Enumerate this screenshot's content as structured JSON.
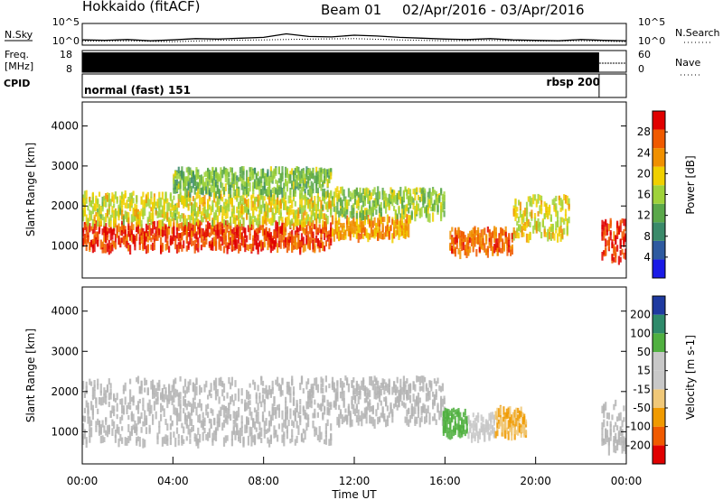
{
  "header": {
    "station": "Hokkaido (fitACF)",
    "beam": "Beam 01",
    "date_range": "02/Apr/2016 - 03/Apr/2016"
  },
  "colors": {
    "power": [
      "#1a1ae6",
      "#2e5aa0",
      "#3a8a6a",
      "#5aa84a",
      "#9fd23a",
      "#f0d000",
      "#f09000",
      "#f05a00",
      "#e00000"
    ],
    "velocity": [
      "#e00000",
      "#f05a00",
      "#f09a00",
      "#f0c878",
      "#c8c8c8",
      "#c8c8c8",
      "#50b040",
      "#2e8a6a",
      "#1e3aa0"
    ],
    "ground_scatter": "#b4b4b4"
  },
  "chart_data": [
    {
      "type": "line",
      "name": "noise-panel",
      "left_label": "N.Sky",
      "right_label": "N.Search",
      "left_ticks": [
        "10^5",
        "10^0"
      ],
      "right_ticks": [
        "10^5",
        "10^0"
      ],
      "series": [
        {
          "name": "N.Sky",
          "style": "solid",
          "x": [
            0,
            1,
            2,
            3,
            4,
            5,
            6,
            7,
            8,
            9,
            10,
            11,
            12,
            13,
            14,
            15,
            16,
            17,
            18,
            19,
            20,
            21,
            22,
            23,
            24
          ],
          "y": [
            1.2,
            1.1,
            1.3,
            1.0,
            1.2,
            1.5,
            1.4,
            1.6,
            1.8,
            2.6,
            2.0,
            1.9,
            2.3,
            2.1,
            1.8,
            1.6,
            1.4,
            1.3,
            1.5,
            1.2,
            1.1,
            1.0,
            1.3,
            1.1,
            1.0
          ]
        },
        {
          "name": "N.Search",
          "style": "dotted",
          "x": [
            0,
            2,
            4,
            6,
            8,
            10,
            12,
            14,
            16,
            18,
            20,
            22,
            24
          ],
          "y": [
            0.9,
            1.0,
            0.8,
            1.1,
            1.2,
            1.4,
            1.5,
            1.2,
            1.0,
            1.1,
            0.9,
            1.0,
            0.8
          ]
        }
      ]
    },
    {
      "type": "line",
      "name": "frequency-panel",
      "left_label": "Freq. [MHz]",
      "right_label": "Nave",
      "left_ticks": [
        "18",
        "8"
      ],
      "right_ticks": [
        "60",
        "0"
      ],
      "series": [
        {
          "name": "Freq",
          "x": [
            0,
            22.8
          ],
          "y": [
            13,
            13
          ]
        },
        {
          "name": "Nave",
          "x": [
            22.8,
            24
          ],
          "y": [
            15,
            15
          ]
        }
      ]
    },
    {
      "type": "table",
      "name": "cpid-panel",
      "label": "CPID",
      "segments": [
        {
          "text": "normal (fast) 151",
          "start": 0,
          "end": 22.8
        },
        {
          "text": "rbsp 200",
          "start": 22.8,
          "end": 24
        }
      ]
    },
    {
      "type": "heatmap",
      "name": "power-panel",
      "ylabel": "Slant Range [km]",
      "ylim": [
        200,
        4600
      ],
      "yticks": [
        1000,
        2000,
        3000,
        4000
      ],
      "xlim": [
        0,
        24
      ],
      "colorbar": {
        "label": "Power [dB]",
        "ticks": [
          "4",
          "8",
          "12",
          "16",
          "20",
          "24",
          "28"
        ],
        "range": [
          0,
          30
        ]
      },
      "bands": [
        {
          "t0": 0.0,
          "t1": 11.0,
          "r0": 1000,
          "r1": 1650,
          "value": 26
        },
        {
          "t0": 0.0,
          "t1": 11.0,
          "r0": 1650,
          "r1": 2400,
          "value": 17
        },
        {
          "t0": 4.0,
          "t1": 11.0,
          "r0": 2400,
          "r1": 3000,
          "value": 13
        },
        {
          "t0": 11.0,
          "t1": 14.5,
          "r0": 1300,
          "r1": 1800,
          "value": 21
        },
        {
          "t0": 11.0,
          "t1": 16.0,
          "r0": 1800,
          "r1": 2500,
          "value": 14
        },
        {
          "t0": 16.2,
          "t1": 19.0,
          "r0": 900,
          "r1": 1500,
          "value": 24
        },
        {
          "t0": 19.0,
          "t1": 21.5,
          "r0": 1300,
          "r1": 2300,
          "value": 18
        },
        {
          "t0": 22.9,
          "t1": 24.0,
          "r0": 700,
          "r1": 1700,
          "value": 27
        }
      ]
    },
    {
      "type": "heatmap",
      "name": "velocity-panel",
      "ylabel": "Slant Range [km]",
      "ylim": [
        200,
        4600
      ],
      "yticks": [
        1000,
        2000,
        3000,
        4000
      ],
      "xlim": [
        0,
        24
      ],
      "xticks": [
        "00:00",
        "04:00",
        "08:00",
        "12:00",
        "16:00",
        "20:00",
        "00:00"
      ],
      "xlabel": "Time UT",
      "colorbar": {
        "label": "Velocity [m s-1]",
        "ticks": [
          "-200",
          "-100",
          "-50",
          "-15",
          "15",
          "50",
          "100",
          "200"
        ],
        "range": [
          -250,
          250
        ]
      },
      "bands": [
        {
          "t0": 0.0,
          "t1": 11.0,
          "r0": 800,
          "r1": 2400,
          "value": 0,
          "ground_scatter": true
        },
        {
          "t0": 11.0,
          "t1": 16.0,
          "r0": 1300,
          "r1": 2400,
          "value": 0,
          "ground_scatter": true
        },
        {
          "t0": 15.9,
          "t1": 17.0,
          "r0": 1000,
          "r1": 1600,
          "value": 110
        },
        {
          "t0": 17.0,
          "t1": 18.2,
          "r0": 900,
          "r1": 1500,
          "value": 45
        },
        {
          "t0": 18.2,
          "t1": 19.6,
          "r0": 1000,
          "r1": 1700,
          "value": -80
        },
        {
          "t0": 22.9,
          "t1": 24.0,
          "r0": 600,
          "r1": 1800,
          "value": 0,
          "ground_scatter": true
        }
      ]
    }
  ]
}
